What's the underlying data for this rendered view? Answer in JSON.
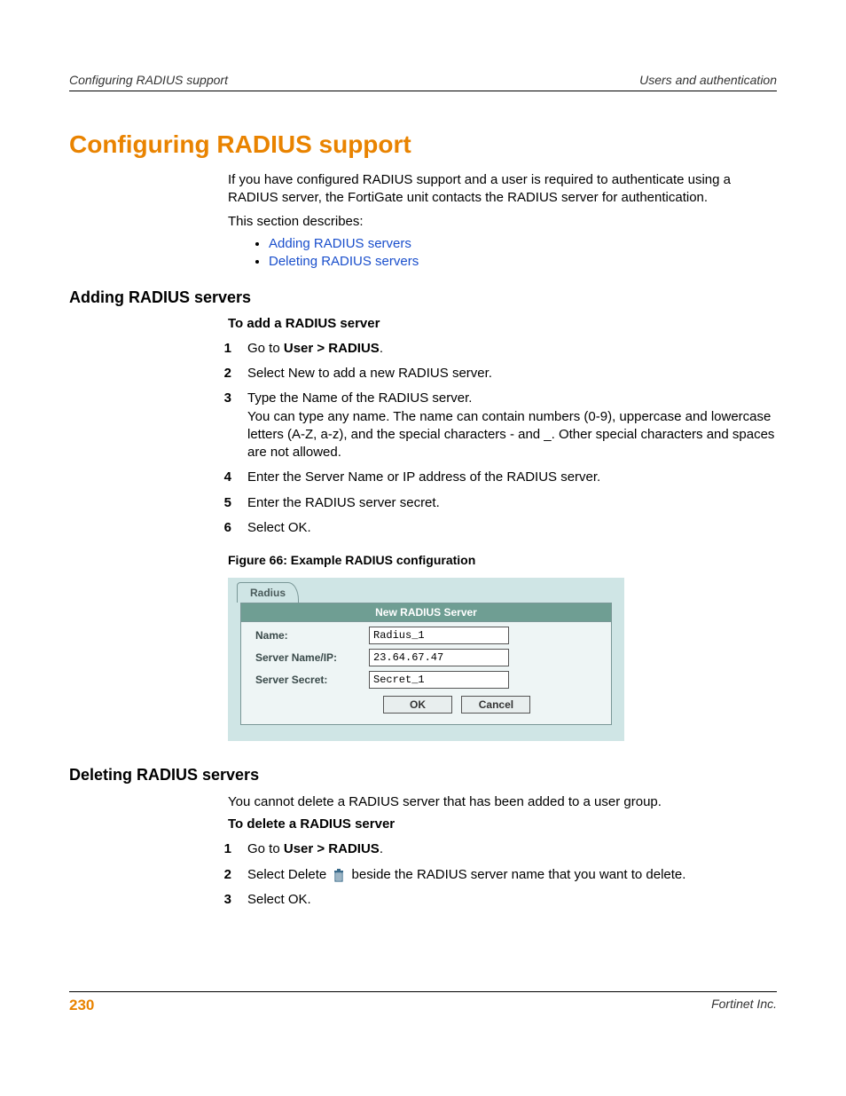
{
  "header": {
    "left": "Configuring RADIUS support",
    "right": "Users and authentication"
  },
  "title": "Configuring RADIUS support",
  "intro": {
    "p1": "If you have configured RADIUS support and a user is required to authenticate using a RADIUS server, the FortiGate unit contacts the RADIUS server for authentication.",
    "p2": "This section describes:",
    "links": [
      "Adding RADIUS servers",
      "Deleting RADIUS servers"
    ]
  },
  "sectionA": {
    "heading": "Adding RADIUS servers",
    "subheading": "To add a RADIUS server",
    "steps": [
      {
        "n": "1",
        "t": "Go to <b>User > RADIUS</b>."
      },
      {
        "n": "2",
        "t": "Select New to add a new RADIUS server."
      },
      {
        "n": "3",
        "t": "Type the Name of the RADIUS server.<br>You can type any name. The name can contain numbers (0-9), uppercase and lowercase letters (A-Z, a-z), and the special characters - and _. Other special characters and spaces are not allowed."
      },
      {
        "n": "4",
        "t": "Enter the Server Name or IP address of the RADIUS server."
      },
      {
        "n": "5",
        "t": "Enter the RADIUS server secret."
      },
      {
        "n": "6",
        "t": "Select OK."
      }
    ],
    "figcap": "Figure 66: Example RADIUS configuration"
  },
  "uiFigure": {
    "tab": "Radius",
    "panelTitle": "New RADIUS Server",
    "rows": [
      {
        "label": "Name:",
        "value": "Radius_1"
      },
      {
        "label": "Server Name/IP:",
        "value": "23.64.67.47"
      },
      {
        "label": "Server Secret:",
        "value": "Secret_1"
      }
    ],
    "buttons": {
      "ok": "OK",
      "cancel": "Cancel"
    },
    "colors": {
      "panelBg": "#eef5f5",
      "outerBg": "#cfe5e5",
      "headBg": "#6f9e93",
      "headText": "#ffffff",
      "border": "#7a9797"
    }
  },
  "sectionB": {
    "heading": "Deleting RADIUS servers",
    "intro": "You cannot delete a RADIUS server that has been added to a user group.",
    "subheading": "To delete a RADIUS server",
    "steps": [
      {
        "n": "1",
        "t": "Go to <b>User > RADIUS</b>."
      },
      {
        "n": "2",
        "t": "Select Delete {TRASH} beside the RADIUS server name that you want to delete."
      },
      {
        "n": "3",
        "t": "Select OK."
      }
    ]
  },
  "footer": {
    "page": "230",
    "company": "Fortinet Inc."
  },
  "colors": {
    "accent": "#e98300",
    "link": "#1a4fcc"
  }
}
